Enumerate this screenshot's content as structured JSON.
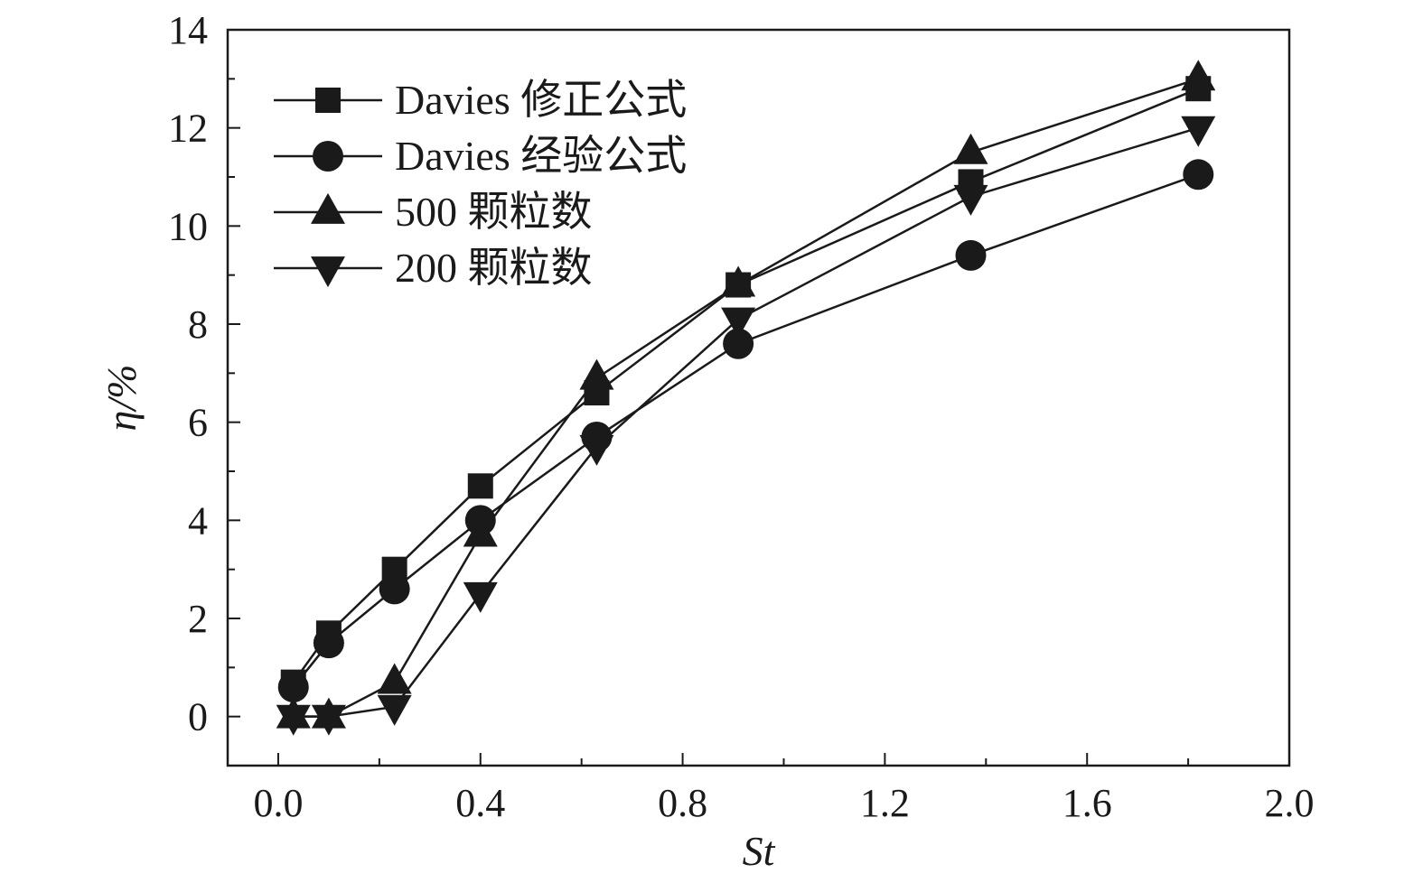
{
  "chart_data": {
    "type": "line",
    "xlabel": "St",
    "ylabel": "η/%",
    "xlim": [
      -0.1,
      2.0
    ],
    "ylim": [
      -1,
      14
    ],
    "xticks": [
      "0.0",
      "0.4",
      "0.8",
      "1.2",
      "1.6",
      "2.0"
    ],
    "xtick_values": [
      0.0,
      0.4,
      0.8,
      1.2,
      1.6,
      2.0
    ],
    "yticks": [
      "0",
      "2",
      "4",
      "6",
      "8",
      "10",
      "12",
      "14"
    ],
    "ytick_values": [
      0,
      2,
      4,
      6,
      8,
      10,
      12,
      14
    ],
    "grid": false,
    "legend_position": "top-left",
    "series": [
      {
        "name": "Davies 修正公式",
        "marker": "square",
        "x": [
          0.03,
          0.1,
          0.23,
          0.4,
          0.63,
          0.91,
          1.37,
          1.82
        ],
        "y": [
          0.7,
          1.7,
          3.0,
          4.7,
          6.6,
          8.8,
          10.9,
          12.8
        ]
      },
      {
        "name": "Davies 经验公式",
        "marker": "circle",
        "x": [
          0.03,
          0.1,
          0.23,
          0.4,
          0.63,
          0.91,
          1.37,
          1.82
        ],
        "y": [
          0.6,
          1.5,
          2.6,
          4.0,
          5.7,
          7.6,
          9.4,
          11.05
        ]
      },
      {
        "name": "500 颗粒数",
        "marker": "triangle-up",
        "x": [
          0.03,
          0.1,
          0.23,
          0.4,
          0.63,
          0.91,
          1.37,
          1.82
        ],
        "y": [
          0.0,
          0.0,
          0.7,
          3.7,
          6.9,
          8.8,
          11.5,
          13.0
        ]
      },
      {
        "name": "200 颗粒数",
        "marker": "triangle-down",
        "x": [
          0.03,
          0.1,
          0.23,
          0.4,
          0.63,
          0.91,
          1.37,
          1.82
        ],
        "y": [
          0.0,
          0.0,
          0.2,
          2.5,
          5.5,
          8.1,
          10.6,
          12.0
        ]
      }
    ]
  }
}
